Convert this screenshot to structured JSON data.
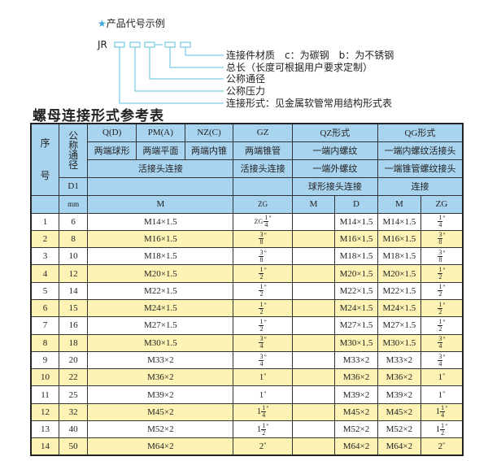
{
  "diagram": {
    "heading_star": "★",
    "heading": "产品代号示例",
    "code_prefix": "JR",
    "dash": "-",
    "labels": [
      "连接件材质　c：为碳钢　b：为不锈钢",
      "总长（长度可根据用户要求定制）",
      "公称通径",
      "公称压力",
      "连接形式：见金属软管常用结构形式表"
    ],
    "line_color": "#5bc0de"
  },
  "title": "螺母连接形式参考表",
  "colors": {
    "header_bg": "#a9d4f0",
    "alt_row_bg": "#fcf3b4"
  },
  "header": {
    "seq": "序号",
    "nominal": "公称通径",
    "d1": "D1",
    "mm": "mm",
    "q": "Q(D)",
    "pm": "PM(A)",
    "nz": "NZ(C)",
    "gz": "GZ",
    "qz": "QZ形式",
    "qg": "QG形式",
    "q_desc": "两端球形",
    "pm_desc": "两端平面",
    "nz_desc": "两端内锥",
    "gz_desc": "两端锥管",
    "qz_desc": "一端内螺纹",
    "qg_desc": "一端内螺纹活接头",
    "qpmnz_conn": "活接头连接",
    "gz_conn": "活接头连接",
    "qz_conn": "一端外螺纹",
    "qg_conn": "一端锥管螺纹接头",
    "qz_conn2": "球形接头连接",
    "qg_conn2": "连接",
    "m": "M",
    "zg": "ZG",
    "qz_m": "M",
    "qz_d": "D",
    "qg_m": "M",
    "qg_zg": "ZG"
  },
  "rows": [
    {
      "no": "1",
      "dn": "6",
      "m": "M14×1.5",
      "zg": {
        "pre": "ZG",
        "w": "",
        "n": "1",
        "d": "4"
      },
      "qz_m": "",
      "qz_d": "M14×1.5",
      "qg_m": "M14×1.5",
      "qg_zg": {
        "w": "",
        "n": "1",
        "d": "4"
      }
    },
    {
      "no": "2",
      "dn": "8",
      "m": "M16×1.5",
      "zg": {
        "w": "",
        "n": "3",
        "d": "8"
      },
      "qz_m": "",
      "qz_d": "M16×1.5",
      "qg_m": "M16×1.5",
      "qg_zg": {
        "w": "",
        "n": "3",
        "d": "8"
      }
    },
    {
      "no": "3",
      "dn": "10",
      "m": "M18×1.5",
      "zg": {
        "w": "",
        "n": "3",
        "d": "8"
      },
      "qz_m": "",
      "qz_d": "M18×1.5",
      "qg_m": "M18×1.5",
      "qg_zg": {
        "w": "",
        "n": "3",
        "d": "8"
      }
    },
    {
      "no": "4",
      "dn": "12",
      "m": "M20×1.5",
      "zg": {
        "w": "",
        "n": "1",
        "d": "2"
      },
      "qz_m": "",
      "qz_d": "M20×1.5",
      "qg_m": "M20×1.5",
      "qg_zg": {
        "w": "",
        "n": "1",
        "d": "2"
      }
    },
    {
      "no": "5",
      "dn": "14",
      "m": "M22×1.5",
      "zg": {
        "w": "",
        "n": "1",
        "d": "2"
      },
      "qz_m": "",
      "qz_d": "M22×1.5",
      "qg_m": "M22×1.5",
      "qg_zg": {
        "w": "",
        "n": "1",
        "d": "2"
      }
    },
    {
      "no": "6",
      "dn": "15",
      "m": "M24×1.5",
      "zg": {
        "w": "",
        "n": "1",
        "d": "2"
      },
      "qz_m": "",
      "qz_d": "M24×1.5",
      "qg_m": "M24×1.5",
      "qg_zg": {
        "w": "",
        "n": "1",
        "d": "2"
      }
    },
    {
      "no": "7",
      "dn": "16",
      "m": "M27×1.5",
      "zg": {
        "w": "",
        "n": "1",
        "d": "2"
      },
      "qz_m": "",
      "qz_d": "M27×1.5",
      "qg_m": "M27×1.5",
      "qg_zg": {
        "w": "",
        "n": "1",
        "d": "2"
      }
    },
    {
      "no": "8",
      "dn": "18",
      "m": "M30×1.5",
      "zg": {
        "w": "",
        "n": "3",
        "d": "4"
      },
      "qz_m": "",
      "qz_d": "M30×1.5",
      "qg_m": "M30×1.5",
      "qg_zg": {
        "w": "",
        "n": "3",
        "d": "4"
      }
    },
    {
      "no": "9",
      "dn": "20",
      "m": "M33×2",
      "zg": {
        "w": "",
        "n": "3",
        "d": "4"
      },
      "qz_m": "",
      "qz_d": "M33×2",
      "qg_m": "M33×2",
      "qg_zg": {
        "w": "",
        "n": "3",
        "d": "4"
      }
    },
    {
      "no": "10",
      "dn": "22",
      "m": "M36×2",
      "zg": {
        "w": "1",
        "n": "",
        "d": ""
      },
      "qz_m": "",
      "qz_d": "M36×2",
      "qg_m": "M36×2",
      "qg_zg": {
        "w": "1",
        "n": "",
        "d": ""
      }
    },
    {
      "no": "11",
      "dn": "25",
      "m": "M39×2",
      "zg": {
        "w": "1",
        "n": "",
        "d": ""
      },
      "qz_m": "",
      "qz_d": "M39×2",
      "qg_m": "M39×2",
      "qg_zg": {
        "w": "1",
        "n": "",
        "d": ""
      }
    },
    {
      "no": "12",
      "dn": "32",
      "m": "M45×2",
      "zg": {
        "w": "1",
        "n": "1",
        "d": "4"
      },
      "qz_m": "",
      "qz_d": "M45×2",
      "qg_m": "M45×2",
      "qg_zg": {
        "w": "1",
        "n": "1",
        "d": "4"
      }
    },
    {
      "no": "13",
      "dn": "40",
      "m": "M52×2",
      "zg": {
        "w": "1",
        "n": "1",
        "d": "2"
      },
      "qz_m": "",
      "qz_d": "M52×2",
      "qg_m": "M52×2",
      "qg_zg": {
        "w": "1",
        "n": "1",
        "d": "2"
      }
    },
    {
      "no": "14",
      "dn": "50",
      "m": "M64×2",
      "zg": {
        "w": "2",
        "n": "",
        "d": ""
      },
      "qz_m": "",
      "qz_d": "M64×2",
      "qg_m": "M64×2",
      "qg_zg": {
        "w": "2",
        "n": "",
        "d": ""
      }
    }
  ],
  "inch_mark": "\""
}
